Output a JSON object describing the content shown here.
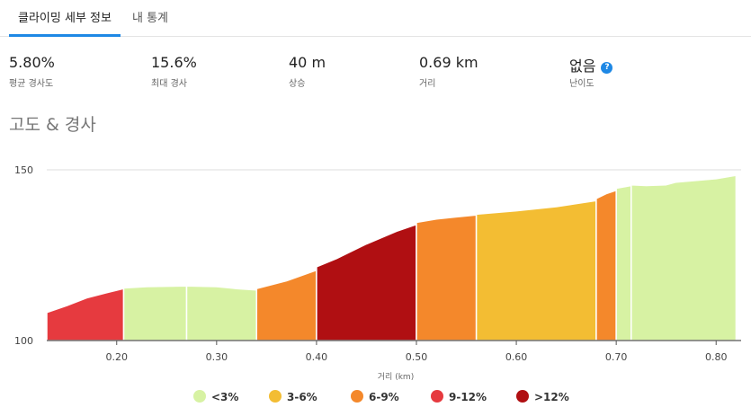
{
  "tabs": [
    {
      "label": "클라이밍 세부 정보",
      "active": true
    },
    {
      "label": "내 통계",
      "active": false
    }
  ],
  "stats": [
    {
      "value": "5.80%",
      "label": "평균 경사도"
    },
    {
      "value": "15.6%",
      "label": "최대 경사"
    },
    {
      "value": "40 m",
      "label": "상승"
    },
    {
      "value": "0.69 km",
      "label": "거리"
    },
    {
      "value": "없음",
      "label": "난이도",
      "help_icon": "?"
    }
  ],
  "section_title": "고도 & 경사",
  "chart_data": {
    "type": "area",
    "xlabel": "거리 (km)",
    "ylabel": "",
    "xlim": [
      0.13,
      0.825
    ],
    "ylim": [
      100,
      150
    ],
    "x_ticks": [
      "0.20",
      "0.30",
      "0.40",
      "0.50",
      "0.60",
      "0.70",
      "0.80"
    ],
    "x_tick_values": [
      0.2,
      0.3,
      0.4,
      0.5,
      0.6,
      0.7,
      0.8
    ],
    "y_ticks": [
      "100",
      "150"
    ],
    "y_tick_values": [
      100,
      150
    ],
    "grid": "horizontal",
    "legend_position": "bottom",
    "gradient_classes": [
      {
        "name": "<3%",
        "color": "#d7f2a3"
      },
      {
        "name": "3-6%",
        "color": "#f3bd33"
      },
      {
        "name": "6-9%",
        "color": "#f4882b"
      },
      {
        "name": "9-12%",
        "color": "#e63a3f"
      },
      {
        "name": ">12%",
        "color": "#b00f12"
      }
    ],
    "segments": [
      {
        "class": "9-12%",
        "points": [
          [
            0.13,
            108.2
          ],
          [
            0.15,
            110.2
          ],
          [
            0.17,
            112.5
          ],
          [
            0.19,
            114
          ],
          [
            0.207,
            115.2
          ]
        ]
      },
      {
        "class": "<3%",
        "points": [
          [
            0.207,
            115.4
          ],
          [
            0.23,
            115.8
          ],
          [
            0.27,
            116
          ]
        ]
      },
      {
        "class": "<3%",
        "points": [
          [
            0.27,
            116
          ],
          [
            0.3,
            115.8
          ],
          [
            0.32,
            115.2
          ],
          [
            0.34,
            114.8
          ]
        ]
      },
      {
        "class": "6-9%",
        "points": [
          [
            0.34,
            115.2
          ],
          [
            0.37,
            117.5
          ],
          [
            0.4,
            120.6
          ]
        ]
      },
      {
        "class": ">12%",
        "points": [
          [
            0.4,
            121.6
          ],
          [
            0.42,
            124
          ],
          [
            0.45,
            128.3
          ],
          [
            0.48,
            132
          ],
          [
            0.5,
            134
          ]
        ]
      },
      {
        "class": "6-9%",
        "points": [
          [
            0.5,
            134.6
          ],
          [
            0.52,
            135.6
          ],
          [
            0.56,
            136.8
          ]
        ]
      },
      {
        "class": "3-6%",
        "points": [
          [
            0.56,
            137
          ],
          [
            0.6,
            138
          ],
          [
            0.64,
            139.2
          ],
          [
            0.68,
            141
          ]
        ]
      },
      {
        "class": "6-9%",
        "points": [
          [
            0.68,
            141.6
          ],
          [
            0.69,
            143
          ],
          [
            0.7,
            144
          ]
        ]
      },
      {
        "class": "<3%",
        "points": [
          [
            0.7,
            144.6
          ],
          [
            0.715,
            145.4
          ]
        ]
      },
      {
        "class": "<3%",
        "points": [
          [
            0.715,
            145.6
          ],
          [
            0.73,
            145.4
          ],
          [
            0.75,
            145.6
          ],
          [
            0.76,
            146.4
          ],
          [
            0.8,
            147.4
          ],
          [
            0.82,
            148.4
          ]
        ]
      }
    ]
  }
}
